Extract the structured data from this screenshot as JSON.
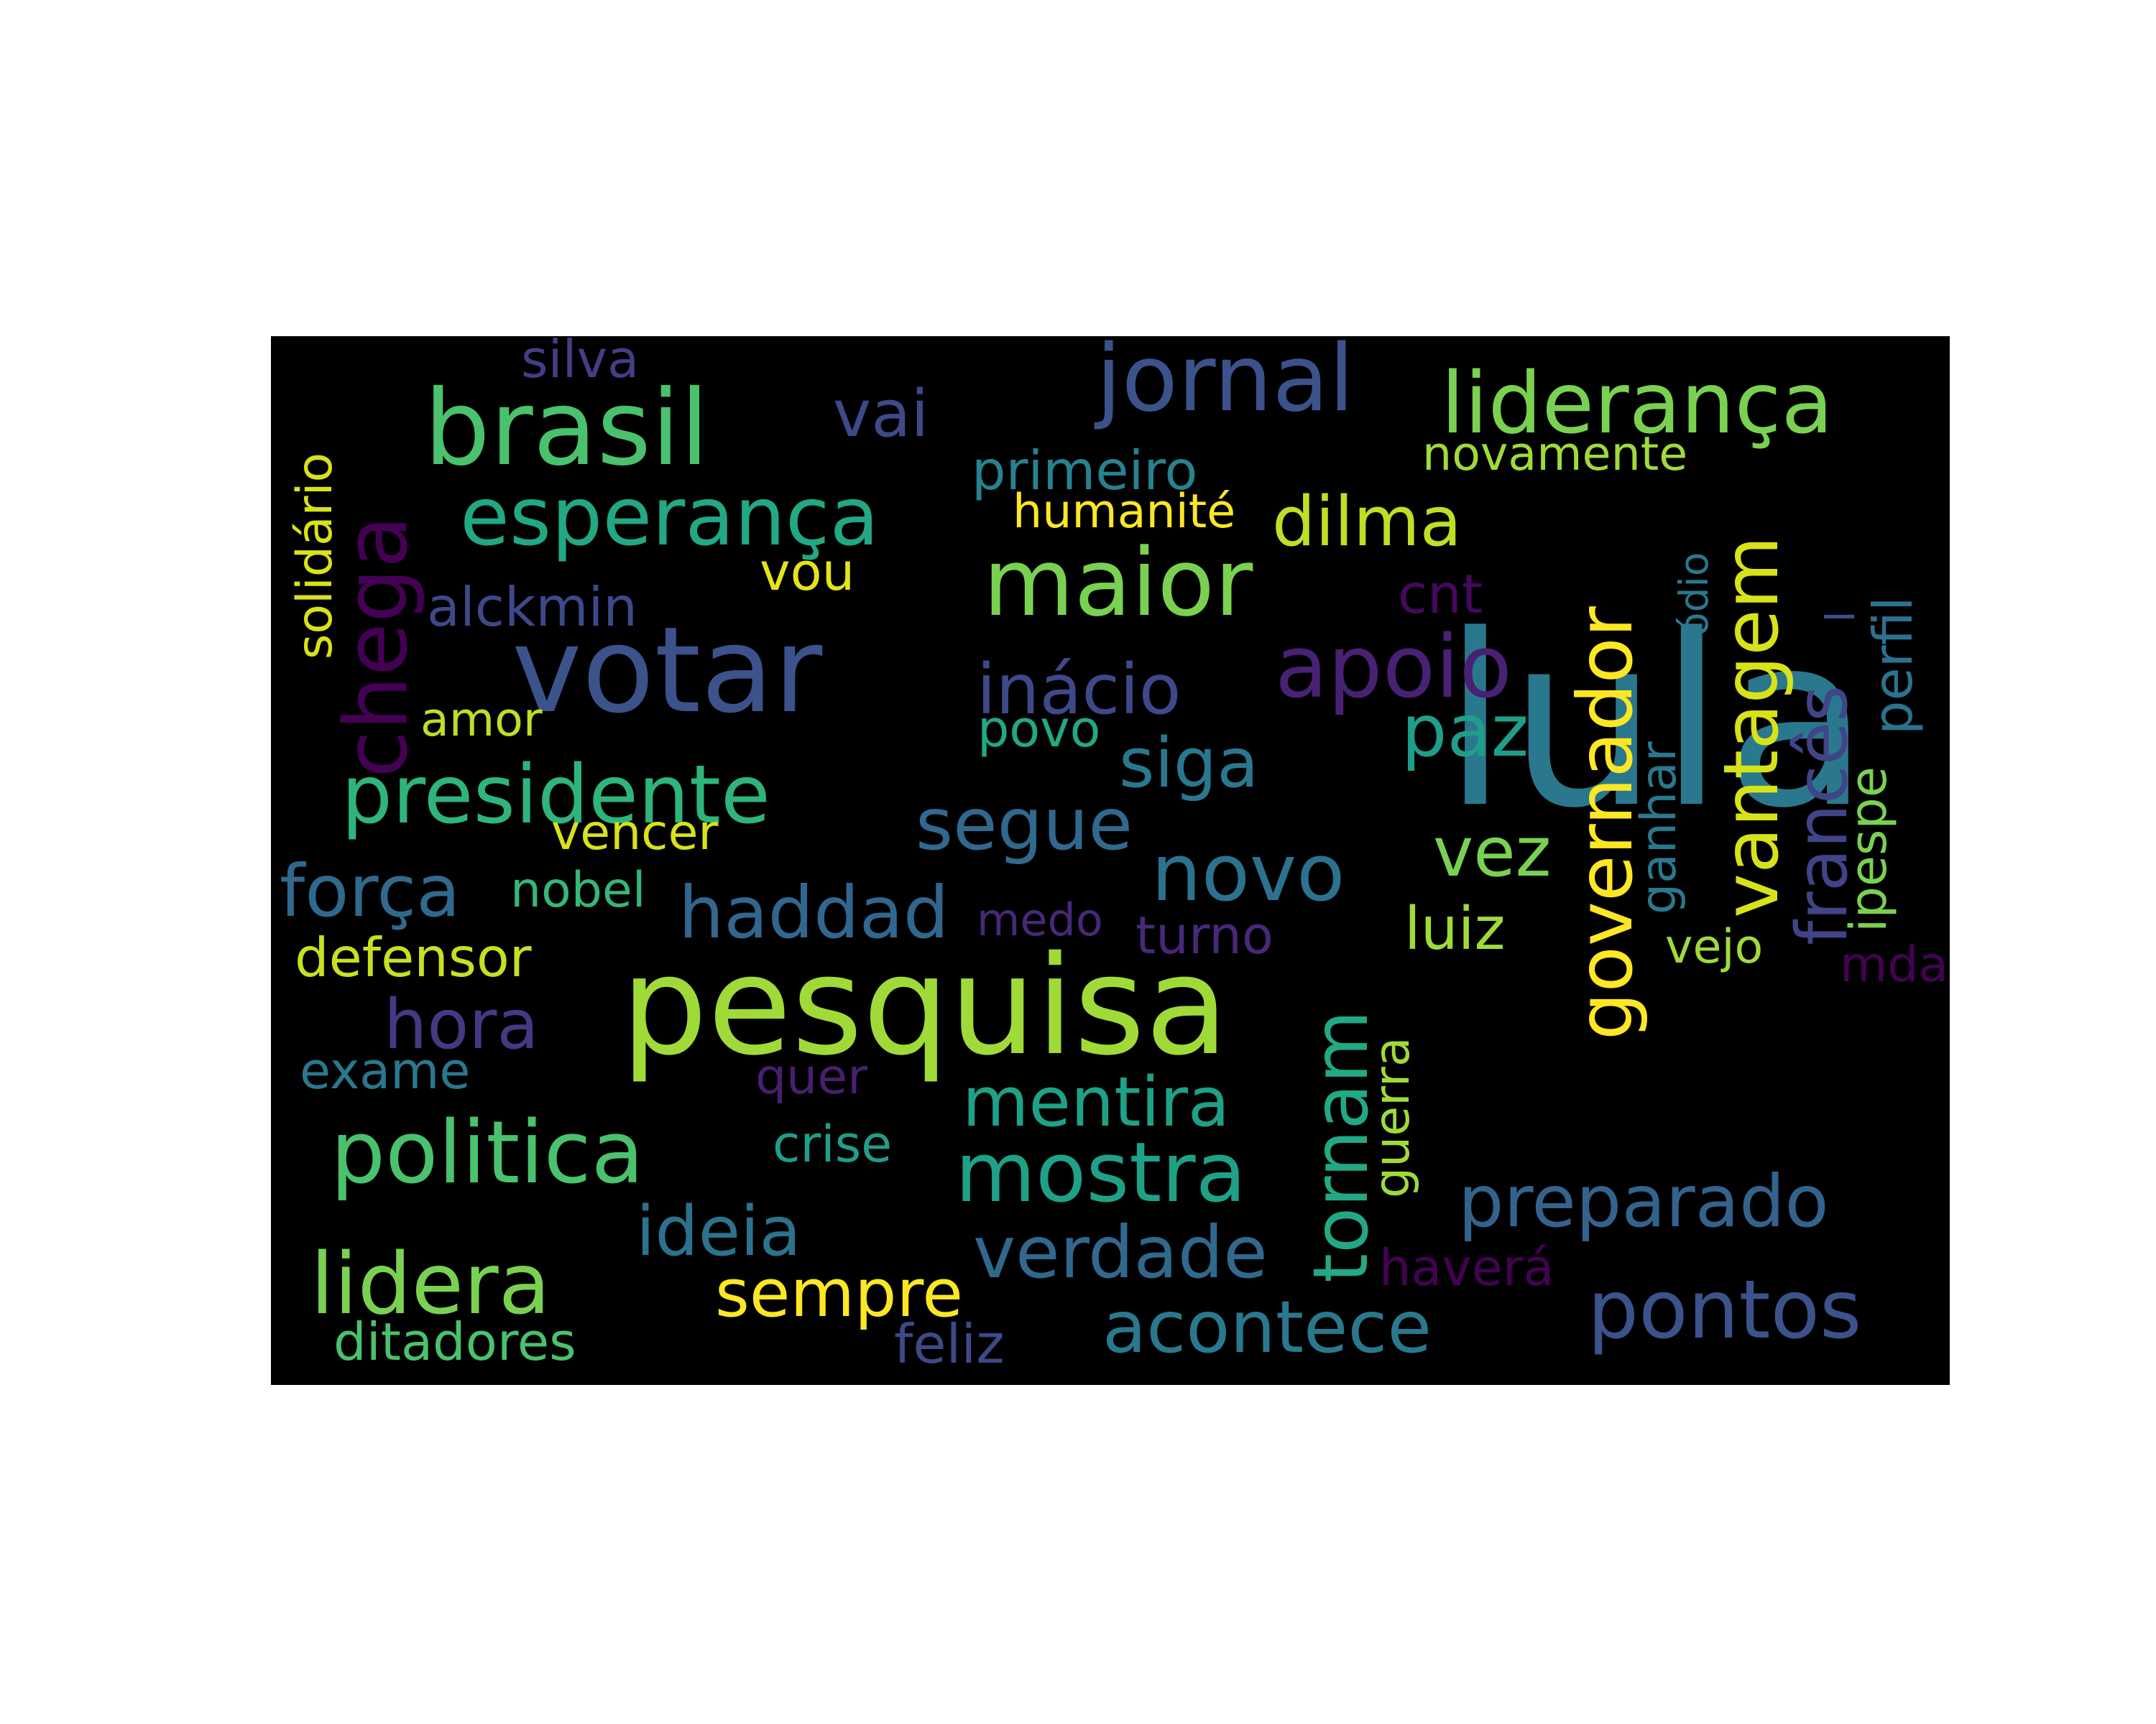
{
  "words": [
    {
      "text": "lula",
      "color": "#2a788e"
    },
    {
      "text": "pesquisa",
      "color": "#a0da39"
    },
    {
      "text": "votar",
      "color": "#3b528b"
    },
    {
      "text": "brasil",
      "color": "#4ac16d"
    },
    {
      "text": "jornal",
      "color": "#3b528b"
    },
    {
      "text": "liderança",
      "color": "#7ad151"
    },
    {
      "text": "esperança",
      "color": "#22a884"
    },
    {
      "text": "maior",
      "color": "#7ad151"
    },
    {
      "text": "presidente",
      "color": "#2fb47c"
    },
    {
      "text": "politica",
      "color": "#4ac16d"
    },
    {
      "text": "mostra",
      "color": "#1fa187"
    },
    {
      "text": "lidera",
      "color": "#7ad151"
    },
    {
      "text": "pontos",
      "color": "#3b528b"
    },
    {
      "text": "apoio",
      "color": "#482173"
    },
    {
      "text": "inácio",
      "color": "#3e4989"
    },
    {
      "text": "novo",
      "color": "#2c728e"
    },
    {
      "text": "haddad",
      "color": "#31668e"
    },
    {
      "text": "segue",
      "color": "#31688e"
    },
    {
      "text": "siga",
      "color": "#2a788e"
    },
    {
      "text": "dilma",
      "color": "#bddf26"
    },
    {
      "text": "paz",
      "color": "#1f9e89"
    },
    {
      "text": "vez",
      "color": "#7ad151"
    },
    {
      "text": "luiz",
      "color": "#a0da39"
    },
    {
      "text": "mentira",
      "color": "#1fa187"
    },
    {
      "text": "ideia",
      "color": "#2c728e"
    },
    {
      "text": "verdade",
      "color": "#31688e"
    },
    {
      "text": "acontece",
      "color": "#2a788e"
    },
    {
      "text": "preparado",
      "color": "#33638d"
    },
    {
      "text": "sempre",
      "color": "#fde725"
    },
    {
      "text": "força",
      "color": "#31688e"
    },
    {
      "text": "hora",
      "color": "#443983"
    },
    {
      "text": "vai",
      "color": "#3e4989"
    },
    {
      "text": "alckmin",
      "color": "#3e4989"
    },
    {
      "text": "primeiro",
      "color": "#26828e"
    },
    {
      "text": "humanité",
      "color": "#fde725"
    },
    {
      "text": "novamente",
      "color": "#a0da39"
    },
    {
      "text": "silva",
      "color": "#433e85"
    },
    {
      "text": "vou",
      "color": "#e5e419"
    },
    {
      "text": "cnt",
      "color": "#46085c"
    },
    {
      "text": "amor",
      "color": "#bddf26"
    },
    {
      "text": "povo",
      "color": "#22a884"
    },
    {
      "text": "vencer",
      "color": "#d8e219"
    },
    {
      "text": "nobel",
      "color": "#35b779"
    },
    {
      "text": "medo",
      "color": "#482878"
    },
    {
      "text": "turno",
      "color": "#482878"
    },
    {
      "text": "defensor",
      "color": "#c8e020"
    },
    {
      "text": "exame",
      "color": "#2a788e"
    },
    {
      "text": "quer",
      "color": "#481f70"
    },
    {
      "text": "crise",
      "color": "#1f9e89"
    },
    {
      "text": "feliz",
      "color": "#3e4989"
    },
    {
      "text": "ditadores",
      "color": "#4ac16d"
    },
    {
      "text": "haverá",
      "color": "#440154"
    },
    {
      "text": "vejo",
      "color": "#a0da39"
    },
    {
      "text": "mda",
      "color": "#440154"
    },
    {
      "text": "chega",
      "color": "#440154"
    },
    {
      "text": "solidário",
      "color": "#d8e219"
    },
    {
      "text": "governador",
      "color": "#fde725"
    },
    {
      "text": "vantagem",
      "color": "#d8e219"
    },
    {
      "text": "francês",
      "color": "#414487"
    },
    {
      "text": "ódio",
      "color": "#2a788e"
    },
    {
      "text": "perfil",
      "color": "#2c728e"
    },
    {
      "text": "ipespe",
      "color": "#7ad151"
    },
    {
      "text": "ganhar",
      "color": "#2a788e"
    },
    {
      "text": "tornam",
      "color": "#22a884"
    },
    {
      "text": "guerra",
      "color": "#a0da39"
    },
    {
      "text": "l",
      "color": "#3b528b"
    }
  ]
}
